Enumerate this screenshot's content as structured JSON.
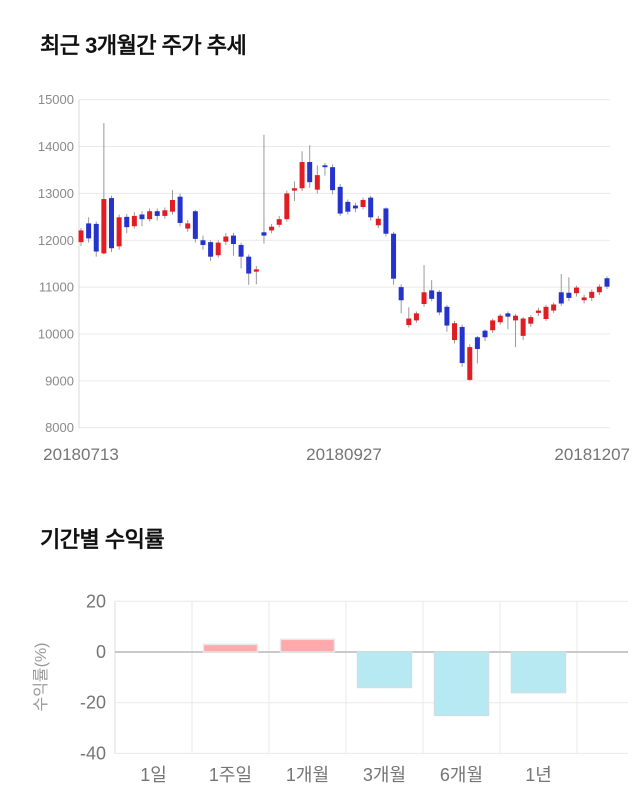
{
  "chart_data": [
    {
      "type": "candlestick",
      "title": "최근 3개월간 주가 추세",
      "ylabel": "",
      "xlabel": "",
      "ylim": [
        8000,
        15000
      ],
      "y_ticks": [
        15000,
        14000,
        13000,
        12000,
        11000,
        10000,
        9000,
        8000
      ],
      "x_tick_labels": [
        "20180713",
        "20180927",
        "20181207"
      ],
      "grid": "horizontal",
      "up_color": "#e11d23",
      "down_color": "#2433cd",
      "wick_color": "#999999",
      "grid_color": "#e9e9e9",
      "axis_color": "#d8d8d8",
      "tick_text_color": "#8a8a8a",
      "date_text_color": "#757575",
      "candles_ohlc": [
        [
          11960,
          12260,
          11880,
          12210
        ],
        [
          12360,
          12490,
          11950,
          12040
        ],
        [
          12350,
          12400,
          11650,
          11760
        ],
        [
          11720,
          14500,
          11700,
          12880
        ],
        [
          12900,
          12950,
          11750,
          11830
        ],
        [
          11870,
          12550,
          11800,
          12490
        ],
        [
          12500,
          12560,
          12150,
          12280
        ],
        [
          12300,
          12600,
          12250,
          12520
        ],
        [
          12550,
          12620,
          12300,
          12450
        ],
        [
          12450,
          12680,
          12400,
          12620
        ],
        [
          12620,
          12680,
          12420,
          12520
        ],
        [
          12520,
          12700,
          12460,
          12640
        ],
        [
          12610,
          13070,
          12550,
          12860
        ],
        [
          12930,
          13000,
          12300,
          12370
        ],
        [
          12250,
          12430,
          12180,
          12360
        ],
        [
          12620,
          12650,
          11950,
          12030
        ],
        [
          12000,
          12100,
          11800,
          11900
        ],
        [
          11960,
          12000,
          11560,
          11650
        ],
        [
          11680,
          12000,
          11630,
          11950
        ],
        [
          11970,
          12150,
          11900,
          12080
        ],
        [
          12100,
          12160,
          11670,
          11920
        ],
        [
          11900,
          11950,
          11400,
          11650
        ],
        [
          11650,
          11700,
          11050,
          11290
        ],
        [
          11330,
          11450,
          11060,
          11380
        ],
        [
          12170,
          14250,
          11930,
          12100
        ],
        [
          12210,
          12350,
          12150,
          12290
        ],
        [
          12330,
          12520,
          12280,
          12450
        ],
        [
          12450,
          13060,
          12400,
          13000
        ],
        [
          13060,
          13260,
          12840,
          13110
        ],
        [
          13110,
          13900,
          13050,
          13670
        ],
        [
          13670,
          14030,
          13120,
          13240
        ],
        [
          13080,
          13600,
          13000,
          13390
        ],
        [
          13600,
          13650,
          13380,
          13560
        ],
        [
          13560,
          13620,
          12980,
          13070
        ],
        [
          13140,
          13200,
          12520,
          12570
        ],
        [
          12820,
          12870,
          12550,
          12610
        ],
        [
          12740,
          12800,
          12600,
          12680
        ],
        [
          12710,
          12910,
          12660,
          12860
        ],
        [
          12910,
          12950,
          12420,
          12490
        ],
        [
          12320,
          12520,
          12260,
          12460
        ],
        [
          12680,
          12700,
          12080,
          12140
        ],
        [
          12140,
          12180,
          11050,
          11180
        ],
        [
          11000,
          11060,
          10440,
          10720
        ],
        [
          10190,
          10570,
          10140,
          10330
        ],
        [
          10290,
          10480,
          10240,
          10440
        ],
        [
          10640,
          11470,
          10580,
          10890
        ],
        [
          10930,
          11150,
          10700,
          10750
        ],
        [
          10900,
          10940,
          10400,
          10460
        ],
        [
          10580,
          10620,
          10050,
          10180
        ],
        [
          9870,
          10280,
          9800,
          10230
        ],
        [
          10150,
          10200,
          9300,
          9380
        ],
        [
          9020,
          9780,
          9000,
          9720
        ],
        [
          9930,
          9960,
          9370,
          9680
        ],
        [
          10070,
          10100,
          9850,
          9930
        ],
        [
          10080,
          10330,
          10020,
          10290
        ],
        [
          10250,
          10430,
          10200,
          10390
        ],
        [
          10440,
          10480,
          10100,
          10370
        ],
        [
          10290,
          10430,
          9720,
          10390
        ],
        [
          9960,
          10360,
          9870,
          10330
        ],
        [
          10220,
          10400,
          10150,
          10360
        ],
        [
          10450,
          10560,
          10380,
          10500
        ],
        [
          10320,
          10620,
          10280,
          10580
        ],
        [
          10500,
          10670,
          10450,
          10630
        ],
        [
          10890,
          11280,
          10600,
          10650
        ],
        [
          10880,
          11210,
          10700,
          10770
        ],
        [
          10870,
          11030,
          10800,
          10990
        ],
        [
          10720,
          10840,
          10650,
          10780
        ],
        [
          10770,
          10950,
          10700,
          10900
        ],
        [
          10890,
          11060,
          10830,
          11010
        ],
        [
          11190,
          11230,
          10960,
          11010
        ]
      ]
    },
    {
      "type": "bar",
      "title": "기간별 수익률",
      "ylabel": "수익률(%)",
      "xlabel": "",
      "categories": [
        "1일",
        "1주일",
        "1개월",
        "3개월",
        "6개월",
        "1년"
      ],
      "values": [
        0,
        3,
        5,
        -14,
        -25,
        -16
      ],
      "ylim": [
        -40,
        20
      ],
      "y_ticks": [
        20,
        0,
        -20,
        -40
      ],
      "grid": "both",
      "positive_color": "#ffa9ac",
      "positive_border": "#e8e8e8",
      "negative_color": "#b7e9f3",
      "negative_border": "#ccdfe7",
      "grid_color": "#e9e9e9",
      "zero_line_color": "#c9c9c9",
      "axis_color": "#dcdcdc",
      "tick_text_color": "#757575",
      "ylabel_color": "#999999",
      "legend": "none"
    }
  ]
}
